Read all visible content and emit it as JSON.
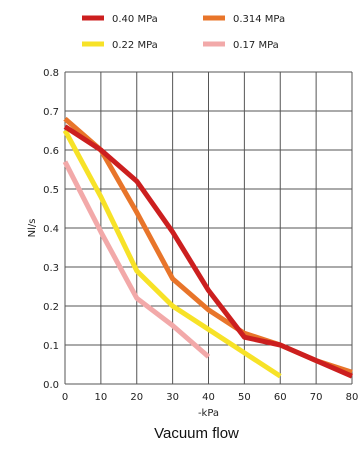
{
  "chart_data": {
    "type": "line",
    "title": "",
    "caption": "Vacuum flow",
    "xlabel": "-kPa",
    "ylabel": "Nl/s",
    "xlim": [
      0,
      80
    ],
    "ylim": [
      0,
      0.8
    ],
    "x_ticks": [
      "0",
      "10",
      "20",
      "30",
      "40",
      "50",
      "60",
      "70",
      "80"
    ],
    "y_ticks": [
      "0.0",
      "0.1",
      "0.2",
      "0.3",
      "0.4",
      "0.5",
      "0.6",
      "0.7",
      "0.8"
    ],
    "grid": true,
    "legend_position": "top",
    "series": [
      {
        "name": "0.40 MPa",
        "color": "#cc1f1f",
        "x": [
          0,
          10,
          20,
          30,
          40,
          50,
          60,
          70,
          80
        ],
        "y": [
          0.66,
          0.6,
          0.52,
          0.39,
          0.24,
          0.12,
          0.1,
          0.06,
          0.02
        ]
      },
      {
        "name": "0.314 MPa",
        "color": "#e8752a",
        "x": [
          0,
          10,
          20,
          30,
          40,
          50,
          60,
          70,
          80
        ],
        "y": [
          0.68,
          0.6,
          0.44,
          0.27,
          0.19,
          0.13,
          0.1,
          0.06,
          0.03
        ]
      },
      {
        "name": "0.22 MPa",
        "color": "#f7e227",
        "x": [
          0,
          10,
          20,
          30,
          40,
          50,
          60
        ],
        "y": [
          0.65,
          0.48,
          0.29,
          0.2,
          0.14,
          0.08,
          0.02
        ]
      },
      {
        "name": "0.17 MPa",
        "color": "#f2a9a9",
        "x": [
          0,
          10,
          20,
          30,
          40
        ],
        "y": [
          0.57,
          0.39,
          0.22,
          0.15,
          0.07
        ]
      }
    ]
  }
}
